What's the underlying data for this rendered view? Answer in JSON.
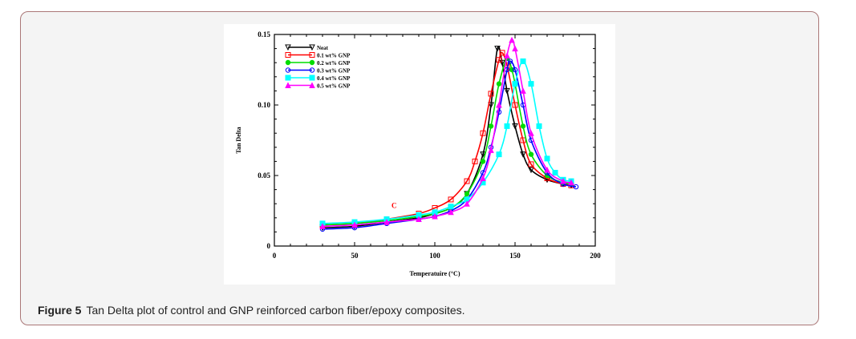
{
  "chart_data": {
    "type": "line",
    "xlabel": "Temperatuire (°C)",
    "ylabel": "Tan Delta",
    "xlim": [
      0,
      200
    ],
    "ylim": [
      0,
      0.15
    ],
    "xticks": [
      "0",
      "50",
      "100",
      "150",
      "200"
    ],
    "yticks": [
      "0",
      "0.05",
      "0.10",
      "0.15"
    ],
    "grid": false,
    "legend_position": "top-left",
    "annotation": {
      "text": "C",
      "x": 73,
      "y": 0.027,
      "color": "#ff0000"
    },
    "series": [
      {
        "name": "Neat",
        "color": "#000000",
        "marker": "triangle-down",
        "x": [
          30,
          50,
          70,
          90,
          100,
          110,
          120,
          130,
          135,
          139,
          142,
          145,
          150,
          155,
          160,
          170,
          180,
          185
        ],
        "y": [
          0.013,
          0.014,
          0.017,
          0.02,
          0.023,
          0.027,
          0.037,
          0.065,
          0.1,
          0.14,
          0.13,
          0.11,
          0.085,
          0.065,
          0.054,
          0.047,
          0.044,
          0.043
        ]
      },
      {
        "name": "0.1 wt% GNP",
        "color": "#ff0000",
        "marker": "square-open",
        "x": [
          30,
          50,
          70,
          90,
          100,
          110,
          120,
          125,
          130,
          135,
          140,
          142,
          145,
          150,
          155,
          160,
          170,
          180,
          185
        ],
        "y": [
          0.015,
          0.016,
          0.019,
          0.023,
          0.027,
          0.033,
          0.046,
          0.06,
          0.08,
          0.108,
          0.132,
          0.137,
          0.128,
          0.1,
          0.075,
          0.058,
          0.048,
          0.044,
          0.043
        ]
      },
      {
        "name": "0.2 wt% GNP",
        "color": "#00dd00",
        "marker": "circle-filled",
        "x": [
          30,
          50,
          70,
          90,
          100,
          110,
          120,
          130,
          135,
          140,
          145,
          148,
          150,
          155,
          160,
          170,
          180,
          185
        ],
        "y": [
          0.015,
          0.016,
          0.018,
          0.021,
          0.023,
          0.027,
          0.037,
          0.06,
          0.085,
          0.115,
          0.133,
          0.125,
          0.115,
          0.085,
          0.065,
          0.05,
          0.045,
          0.044
        ]
      },
      {
        "name": "0.3 wt% GNP",
        "color": "#0000ff",
        "marker": "circle-open",
        "x": [
          30,
          50,
          70,
          90,
          100,
          110,
          120,
          130,
          135,
          140,
          145,
          147,
          150,
          155,
          160,
          170,
          180,
          188
        ],
        "y": [
          0.012,
          0.013,
          0.016,
          0.019,
          0.021,
          0.025,
          0.033,
          0.052,
          0.07,
          0.095,
          0.125,
          0.131,
          0.125,
          0.1,
          0.075,
          0.052,
          0.044,
          0.042
        ]
      },
      {
        "name": "0.4 wt% GNP",
        "color": "#00ffff",
        "marker": "square-filled",
        "x": [
          30,
          50,
          70,
          90,
          100,
          110,
          120,
          130,
          140,
          145,
          150,
          155,
          160,
          165,
          170,
          175,
          180,
          185
        ],
        "y": [
          0.016,
          0.017,
          0.019,
          0.022,
          0.024,
          0.028,
          0.033,
          0.045,
          0.065,
          0.085,
          0.115,
          0.131,
          0.115,
          0.085,
          0.062,
          0.052,
          0.047,
          0.046
        ]
      },
      {
        "name": "0.5 wt% GNP",
        "color": "#ff00ff",
        "marker": "triangle-up",
        "x": [
          30,
          50,
          70,
          90,
          100,
          110,
          120,
          130,
          135,
          140,
          145,
          148,
          150,
          155,
          160,
          170,
          180,
          185
        ],
        "y": [
          0.014,
          0.015,
          0.017,
          0.019,
          0.021,
          0.024,
          0.03,
          0.048,
          0.068,
          0.1,
          0.135,
          0.146,
          0.14,
          0.11,
          0.08,
          0.054,
          0.046,
          0.045
        ]
      }
    ]
  },
  "caption": {
    "label": "Figure 5",
    "text": "Tan Delta plot of control and GNP reinforced carbon fiber/epoxy composites."
  }
}
